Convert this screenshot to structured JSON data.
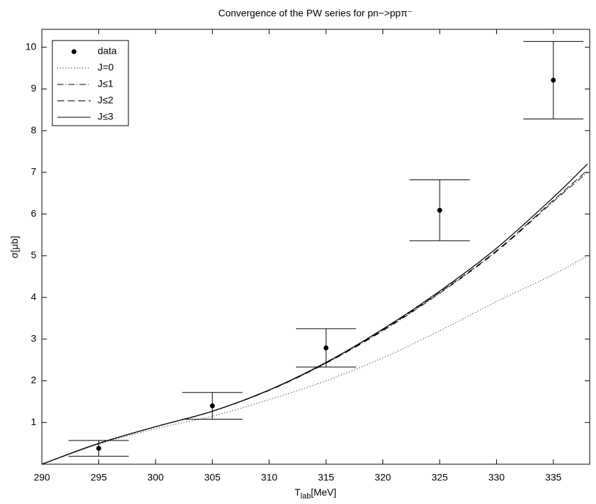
{
  "chart_data": {
    "type": "line",
    "title": "Convergence of the PW series for pn−>ppπ⁻",
    "xlabel": [
      "T",
      "lab",
      "[MeV]"
    ],
    "ylabel": "σ[μb]",
    "x": [
      290,
      295,
      300,
      305,
      310,
      315,
      320,
      325,
      330,
      335,
      338
    ],
    "series": [
      {
        "name": "data",
        "color": "#000000",
        "marker": "dot",
        "x": [
          295,
          305,
          315,
          325,
          335
        ],
        "values": [
          0.38,
          1.4,
          2.79,
          6.09,
          9.21
        ],
        "errors": [
          0.19,
          0.32,
          0.46,
          0.73,
          0.93
        ]
      },
      {
        "name": "J=0",
        "color": "#000000",
        "style": "dotted",
        "values": [
          0,
          0.48,
          0.85,
          1.15,
          1.55,
          2.0,
          2.55,
          3.2,
          3.9,
          4.55,
          5.0
        ]
      },
      {
        "name": "J≤1",
        "color": "#000000",
        "style": "dashdot",
        "values": [
          0,
          0.5,
          0.9,
          1.27,
          1.77,
          2.42,
          3.2,
          4.1,
          5.1,
          6.3,
          7.0
        ]
      },
      {
        "name": "J≤2",
        "color": "#000000",
        "style": "dashed",
        "values": [
          0,
          0.5,
          0.9,
          1.27,
          1.78,
          2.43,
          3.22,
          4.12,
          5.12,
          6.33,
          7.05
        ]
      },
      {
        "name": "J≤3",
        "color": "#000000",
        "style": "solid",
        "values": [
          0,
          0.5,
          0.9,
          1.27,
          1.78,
          2.44,
          3.24,
          4.15,
          5.18,
          6.4,
          7.2
        ]
      }
    ],
    "xlim": [
      290,
      338.2
    ],
    "ylim": [
      0,
      10.43
    ],
    "xticks": [
      290,
      295,
      300,
      305,
      310,
      315,
      320,
      325,
      330,
      335
    ],
    "yticks": [
      1,
      2,
      3,
      4,
      5,
      6,
      7,
      8,
      9,
      10
    ],
    "grid": false,
    "legend": "upper-left"
  }
}
